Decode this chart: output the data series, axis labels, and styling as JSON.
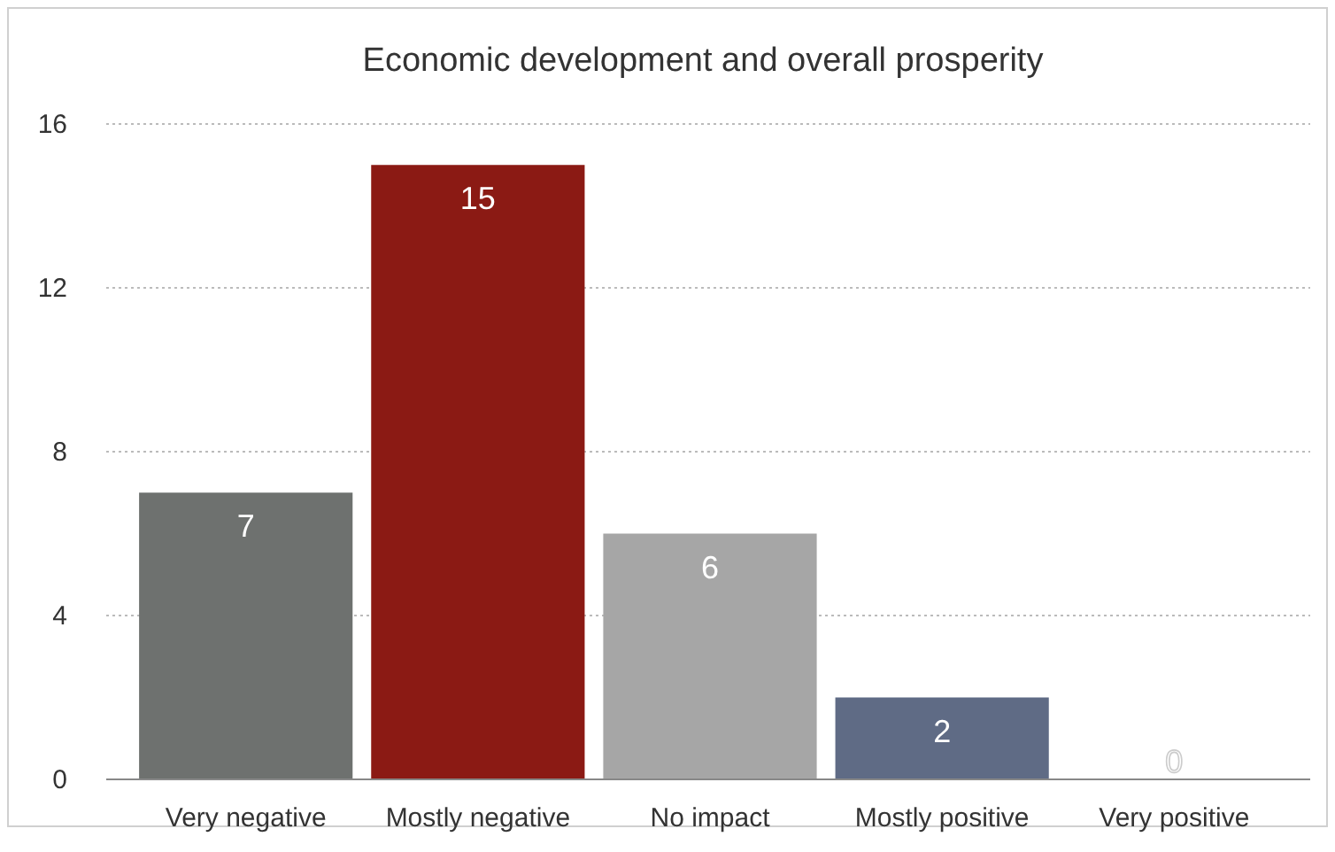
{
  "chart_data": {
    "type": "bar",
    "title": "Economic development and overall prosperity",
    "categories": [
      "Very negative",
      "Mostly negative",
      "No impact",
      "Mostly positive",
      "Very positive"
    ],
    "values": [
      7,
      15,
      6,
      2,
      0
    ],
    "colors": [
      "#6e716f",
      "#8b1a14",
      "#a6a6a6",
      "#5f6b85",
      "#c8c8c8"
    ],
    "ylim": [
      0,
      16
    ],
    "yticks": [
      0,
      4,
      8,
      12,
      16
    ],
    "grid": "y",
    "data_labels": true
  }
}
